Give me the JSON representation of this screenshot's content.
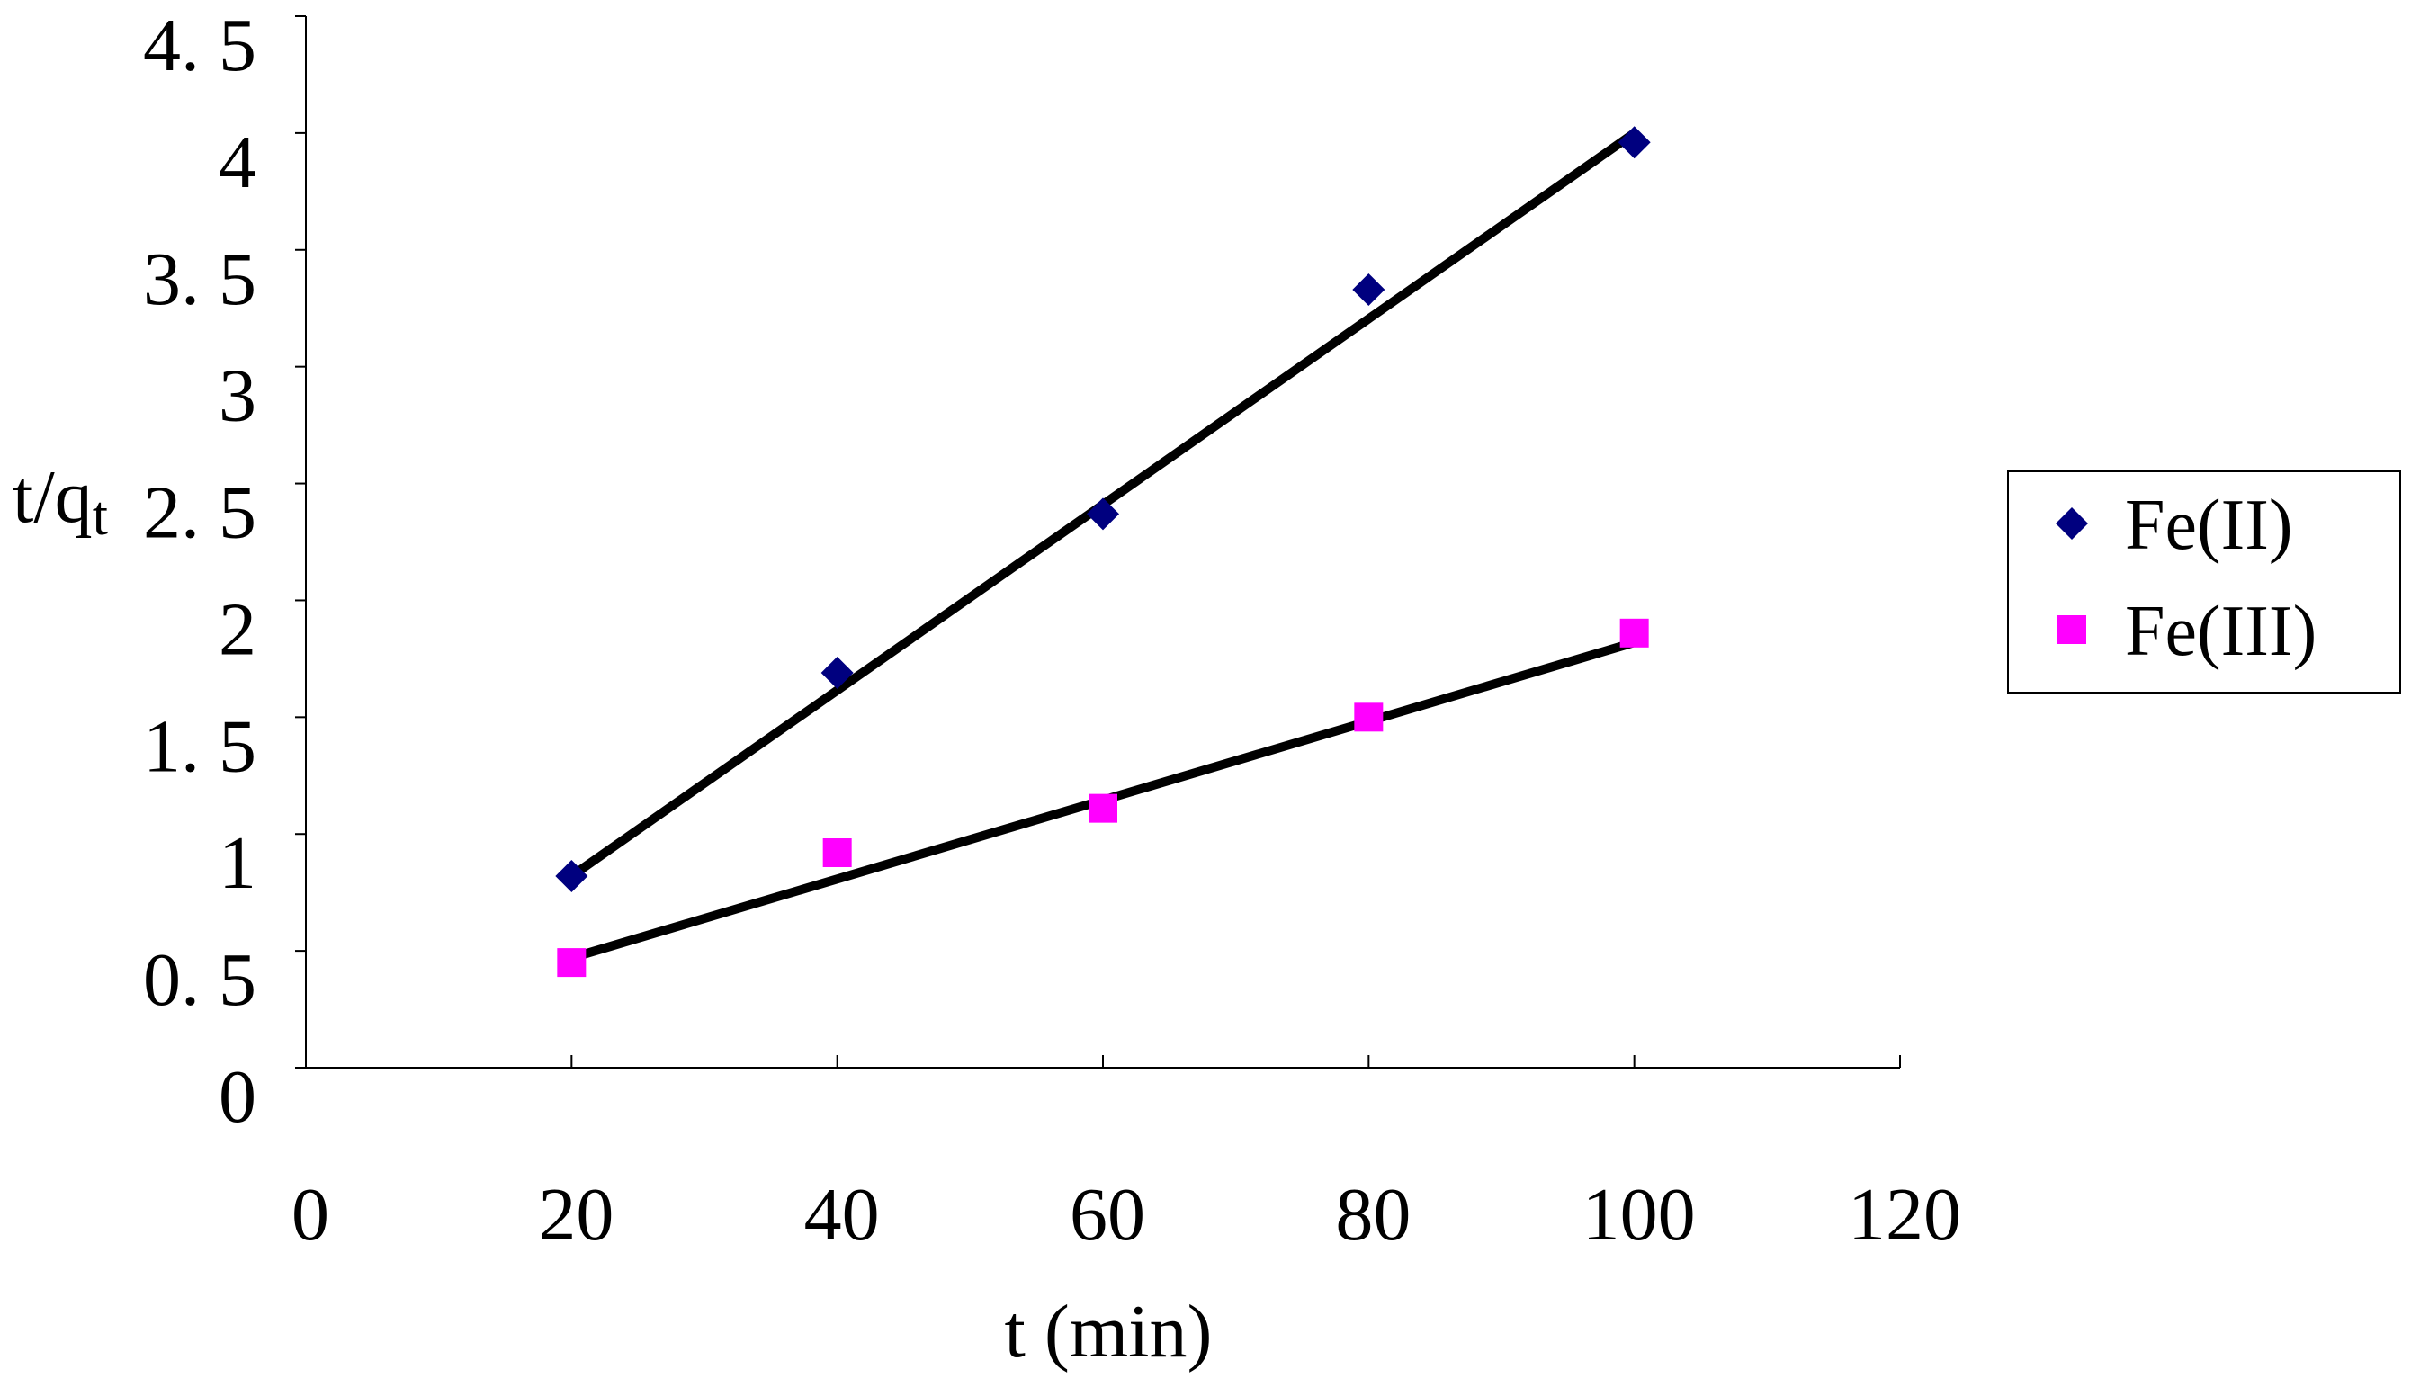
{
  "chart_data": {
    "type": "scatter",
    "title": "",
    "xlabel": "t (min)",
    "ylabel": {
      "main": "t/q",
      "subscript": "t"
    },
    "xlim": [
      0,
      120
    ],
    "ylim": [
      0,
      4.5
    ],
    "xticks": [
      0,
      20,
      40,
      60,
      80,
      100,
      120
    ],
    "yticks": [
      0,
      0.5,
      1,
      1.5,
      2,
      2.5,
      3,
      3.5,
      4,
      4.5
    ],
    "xtick_labels": [
      "0",
      "20",
      "40",
      "60",
      "80",
      "100",
      "120"
    ],
    "ytick_labels": [
      "0",
      "0. 5",
      "1",
      "1. 5",
      "2",
      "2. 5",
      "3",
      "3. 5",
      "4",
      "4. 5"
    ],
    "grid": false,
    "legend_position": "right",
    "series": [
      {
        "name": "Fe(II)",
        "marker": "diamond",
        "color": "#00007F",
        "x": [
          20,
          40,
          60,
          80,
          100
        ],
        "y": [
          0.82,
          1.69,
          2.37,
          3.33,
          3.96
        ],
        "trendline": {
          "x": [
            20,
            100
          ],
          "y": [
            0.82,
            4.0
          ],
          "color": "#000000"
        }
      },
      {
        "name": "Fe(III)",
        "marker": "square",
        "color": "#FF00FF",
        "x": [
          20,
          40,
          60,
          80,
          100
        ],
        "y": [
          0.45,
          0.92,
          1.11,
          1.5,
          1.86
        ],
        "trendline": {
          "x": [
            20,
            100
          ],
          "y": [
            0.47,
            1.82
          ],
          "color": "#000000"
        }
      }
    ]
  }
}
